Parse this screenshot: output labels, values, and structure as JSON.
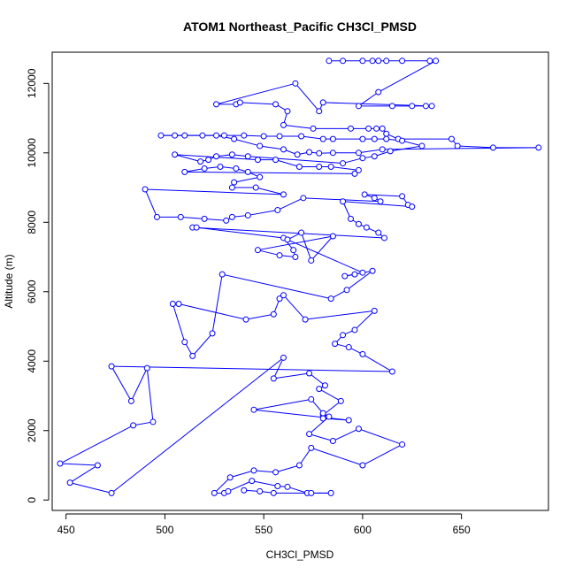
{
  "chart_data": {
    "type": "scatter",
    "title": "ATOM1 Northeast_Pacific CH3Cl_PMSD",
    "xlabel": "CH3Cl_PMSD",
    "ylabel": "Altitude (m)",
    "xlim": [
      443,
      694
    ],
    "ylim": [
      -300,
      12900
    ],
    "xticks": [
      450,
      500,
      550,
      600,
      650
    ],
    "yticks": [
      0,
      2000,
      4000,
      6000,
      8000,
      10000,
      12000
    ],
    "color": "#0000ff",
    "marker": "open-circle",
    "connected": true,
    "grid": false,
    "series": [
      {
        "values": [
          [
            583,
            12650
          ],
          [
            590,
            12650
          ],
          [
            600,
            12650
          ],
          [
            605,
            12650
          ],
          [
            608,
            12650
          ],
          [
            612,
            12650
          ],
          [
            620,
            12650
          ],
          [
            634,
            12650
          ],
          [
            637,
            12650
          ],
          [
            608,
            11750
          ],
          [
            598,
            11350
          ],
          [
            615,
            11350
          ],
          [
            625,
            11350
          ],
          [
            632,
            11350
          ],
          [
            635,
            11350
          ],
          [
            580,
            11450
          ],
          [
            578,
            11200
          ],
          [
            566,
            12000
          ],
          [
            526,
            11400
          ],
          [
            536,
            11400
          ],
          [
            538,
            11450
          ],
          [
            556,
            11400
          ],
          [
            562,
            11200
          ],
          [
            560,
            10800
          ],
          [
            575,
            10700
          ],
          [
            594,
            10700
          ],
          [
            603,
            10700
          ],
          [
            607,
            10700
          ],
          [
            610,
            10700
          ],
          [
            612,
            10550
          ],
          [
            618,
            10400
          ],
          [
            645,
            10400
          ],
          [
            648,
            10200
          ],
          [
            666,
            10150
          ],
          [
            689,
            10150
          ],
          [
            610,
            10100
          ],
          [
            598,
            10000
          ],
          [
            585,
            10000
          ],
          [
            578,
            9990
          ],
          [
            573,
            10020
          ],
          [
            567,
            9950
          ],
          [
            560,
            10100
          ],
          [
            548,
            10200
          ],
          [
            535,
            10400
          ],
          [
            526,
            10500
          ],
          [
            519,
            10500
          ],
          [
            510,
            10500
          ],
          [
            505,
            10500
          ],
          [
            498,
            10500
          ],
          [
            530,
            10500
          ],
          [
            540,
            10500
          ],
          [
            550,
            10480
          ],
          [
            558,
            10480
          ],
          [
            569,
            10480
          ],
          [
            580,
            10400
          ],
          [
            585,
            10400
          ],
          [
            600,
            10400
          ],
          [
            606,
            10400
          ],
          [
            612,
            10400
          ],
          [
            620,
            10350
          ],
          [
            630,
            10200
          ],
          [
            614,
            10050
          ],
          [
            606,
            9900
          ],
          [
            600,
            9850
          ],
          [
            590,
            9700
          ],
          [
            542,
            9900
          ],
          [
            534,
            9950
          ],
          [
            526,
            9900
          ],
          [
            522,
            9800
          ],
          [
            518,
            9750
          ],
          [
            505,
            9950
          ],
          [
            547,
            9800
          ],
          [
            556,
            9800
          ],
          [
            568,
            9600
          ],
          [
            578,
            9600
          ],
          [
            584,
            9600
          ],
          [
            598,
            9500
          ],
          [
            596,
            9400
          ],
          [
            510,
            9450
          ],
          [
            520,
            9550
          ],
          [
            528,
            9600
          ],
          [
            536,
            9550
          ],
          [
            542,
            9450
          ],
          [
            548,
            9300
          ],
          [
            535,
            9150
          ],
          [
            534,
            9000
          ],
          [
            546,
            9000
          ],
          [
            560,
            8800
          ],
          [
            490,
            8950
          ],
          [
            496,
            8150
          ],
          [
            508,
            8150
          ],
          [
            520,
            8100
          ],
          [
            531,
            8050
          ],
          [
            534,
            8150
          ],
          [
            542,
            8200
          ],
          [
            557,
            8350
          ],
          [
            570,
            8700
          ],
          [
            609,
            8600
          ],
          [
            606,
            8700
          ],
          [
            601,
            8800
          ],
          [
            620,
            8750
          ],
          [
            623,
            8500
          ],
          [
            625,
            8450
          ],
          [
            590,
            8600
          ],
          [
            594,
            8100
          ],
          [
            598,
            7950
          ],
          [
            602,
            7850
          ],
          [
            608,
            7700
          ],
          [
            611,
            7550
          ],
          [
            514,
            7850
          ],
          [
            516,
            7850
          ],
          [
            560,
            7550
          ],
          [
            565,
            7200
          ],
          [
            566,
            7000
          ],
          [
            558,
            7050
          ],
          [
            547,
            7200
          ],
          [
            585,
            7600
          ],
          [
            574,
            6900
          ],
          [
            569,
            7700
          ],
          [
            562,
            7500
          ],
          [
            600,
            6550
          ],
          [
            596,
            6500
          ],
          [
            591,
            6450
          ],
          [
            605,
            6600
          ],
          [
            592,
            6050
          ],
          [
            584,
            5800
          ],
          [
            529,
            6500
          ],
          [
            524,
            4800
          ],
          [
            514,
            4150
          ],
          [
            510,
            4550
          ],
          [
            504,
            5650
          ],
          [
            507,
            5650
          ],
          [
            541,
            5200
          ],
          [
            555,
            5350
          ],
          [
            558,
            5800
          ],
          [
            560,
            5900
          ],
          [
            571,
            5200
          ],
          [
            606,
            5450
          ],
          [
            596,
            4900
          ],
          [
            590,
            4750
          ],
          [
            586,
            4500
          ],
          [
            593,
            4400
          ],
          [
            600,
            4200
          ],
          [
            615,
            3700
          ],
          [
            473,
            3850
          ],
          [
            483,
            2850
          ],
          [
            491,
            3800
          ],
          [
            494,
            2250
          ],
          [
            484,
            2150
          ],
          [
            447,
            1050
          ],
          [
            466,
            1000
          ],
          [
            452,
            500
          ],
          [
            473,
            200
          ],
          [
            560,
            4100
          ],
          [
            555,
            3500
          ],
          [
            573,
            3650
          ],
          [
            581,
            3300
          ],
          [
            578,
            3200
          ],
          [
            589,
            2850
          ],
          [
            580,
            2450
          ],
          [
            580,
            2350
          ],
          [
            593,
            2300
          ],
          [
            545,
            2600
          ],
          [
            574,
            2900
          ],
          [
            580,
            2500
          ],
          [
            583,
            2400
          ],
          [
            573,
            1900
          ],
          [
            585,
            1700
          ],
          [
            598,
            2050
          ],
          [
            620,
            1600
          ],
          [
            600,
            1000
          ],
          [
            574,
            1500
          ],
          [
            568,
            1000
          ],
          [
            556,
            800
          ],
          [
            545,
            850
          ],
          [
            533,
            650
          ],
          [
            525,
            200
          ],
          [
            530,
            200
          ],
          [
            532,
            250
          ],
          [
            544,
            550
          ],
          [
            557,
            400
          ],
          [
            562,
            380
          ],
          [
            572,
            200
          ],
          [
            574,
            200
          ],
          [
            584,
            200
          ],
          [
            555,
            200
          ],
          [
            548,
            250
          ],
          [
            540,
            280
          ]
        ]
      }
    ]
  }
}
